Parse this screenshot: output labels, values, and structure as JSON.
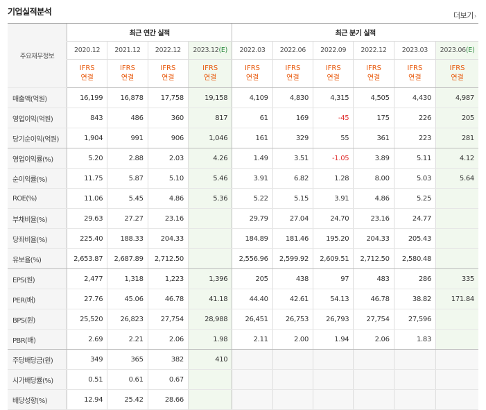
{
  "title": "기업실적분석",
  "more_label": "더보기",
  "more_arrow": "›",
  "row_header_label": "주요재무정보",
  "groups": {
    "annual": "최근 연간 실적",
    "quarterly": "최근 분기 실적"
  },
  "periods": [
    {
      "label": "2020.12",
      "est": ""
    },
    {
      "label": "2021.12",
      "est": ""
    },
    {
      "label": "2022.12",
      "est": ""
    },
    {
      "label": "2023.12",
      "est": "(E)"
    },
    {
      "label": "2022.03",
      "est": ""
    },
    {
      "label": "2022.06",
      "est": ""
    },
    {
      "label": "2022.09",
      "est": ""
    },
    {
      "label": "2022.12",
      "est": ""
    },
    {
      "label": "2023.03",
      "est": ""
    },
    {
      "label": "2023.06",
      "est": "(E)"
    }
  ],
  "acct_line1": "IFRS",
  "acct_line2": "연결",
  "rows": [
    {
      "label": "매출액(억원)",
      "values": [
        "16,199",
        "16,878",
        "17,758",
        "19,158",
        "4,109",
        "4,830",
        "4,315",
        "4,505",
        "4,430",
        "4,987"
      ]
    },
    {
      "label": "영업이익(억원)",
      "values": [
        "843",
        "486",
        "360",
        "817",
        "61",
        "169",
        "-45",
        "175",
        "226",
        "205"
      ]
    },
    {
      "label": "당기순이익(억원)",
      "values": [
        "1,904",
        "991",
        "906",
        "1,046",
        "161",
        "329",
        "55",
        "361",
        "223",
        "281"
      ]
    },
    {
      "label": "영업이익률(%)",
      "values": [
        "5.20",
        "2.88",
        "2.03",
        "4.26",
        "1.49",
        "3.51",
        "-1.05",
        "3.89",
        "5.11",
        "4.12"
      ]
    },
    {
      "label": "순이익률(%)",
      "values": [
        "11.75",
        "5.87",
        "5.10",
        "5.46",
        "3.91",
        "6.82",
        "1.28",
        "8.00",
        "5.03",
        "5.64"
      ]
    },
    {
      "label": "ROE(%)",
      "values": [
        "11.06",
        "5.45",
        "4.86",
        "5.36",
        "5.22",
        "5.15",
        "3.91",
        "4.86",
        "5.25",
        ""
      ]
    },
    {
      "label": "부채비율(%)",
      "values": [
        "29.63",
        "27.27",
        "23.16",
        "",
        "29.79",
        "27.04",
        "24.70",
        "23.16",
        "24.77",
        ""
      ]
    },
    {
      "label": "당좌비율(%)",
      "values": [
        "225.40",
        "188.33",
        "204.33",
        "",
        "184.89",
        "181.46",
        "195.20",
        "204.33",
        "205.43",
        ""
      ]
    },
    {
      "label": "유보율(%)",
      "values": [
        "2,653.87",
        "2,687.89",
        "2,712.50",
        "",
        "2,556.96",
        "2,599.92",
        "2,609.51",
        "2,712.50",
        "2,580.48",
        ""
      ]
    },
    {
      "label": "EPS(원)",
      "values": [
        "2,477",
        "1,318",
        "1,223",
        "1,396",
        "205",
        "438",
        "97",
        "483",
        "286",
        "335"
      ]
    },
    {
      "label": "PER(배)",
      "values": [
        "27.76",
        "45.06",
        "46.78",
        "41.18",
        "44.40",
        "42.61",
        "54.13",
        "46.78",
        "38.82",
        "171.84"
      ]
    },
    {
      "label": "BPS(원)",
      "values": [
        "25,520",
        "26,823",
        "27,754",
        "28,988",
        "26,451",
        "26,753",
        "26,793",
        "27,754",
        "27,596",
        ""
      ]
    },
    {
      "label": "PBR(배)",
      "values": [
        "2.69",
        "2.21",
        "2.06",
        "1.98",
        "2.11",
        "2.00",
        "1.94",
        "2.06",
        "1.83",
        ""
      ]
    },
    {
      "label": "주당배당금(원)",
      "values": [
        "349",
        "365",
        "382",
        "410",
        "",
        "",
        "",
        "",
        "",
        ""
      ]
    },
    {
      "label": "시가배당률(%)",
      "values": [
        "0.51",
        "0.61",
        "0.67",
        "",
        "",
        "",
        "",
        "",
        "",
        ""
      ]
    },
    {
      "label": "배당성향(%)",
      "values": [
        "12.94",
        "25.42",
        "28.66",
        "",
        "",
        "",
        "",
        "",
        "",
        ""
      ]
    }
  ],
  "colors": {
    "accounting_standard": "#e8590c",
    "estimate_label": "#2b8a3e",
    "negative": "#e03131",
    "estimate_bg": "#f1f8ee"
  }
}
